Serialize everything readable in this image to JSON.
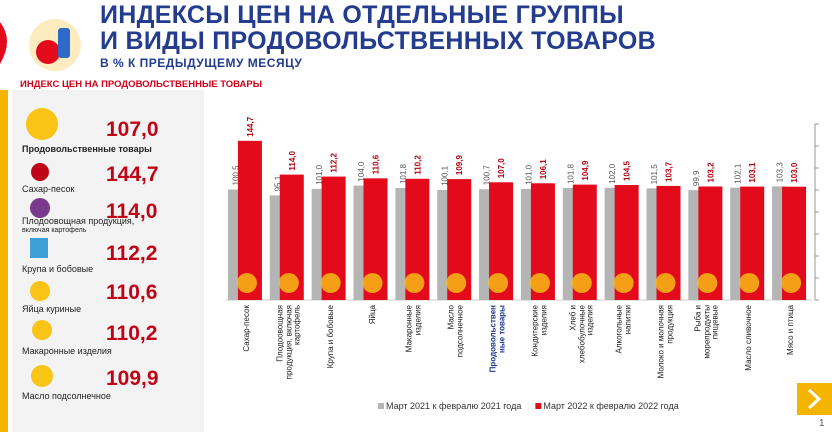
{
  "header": {
    "title_line1": "ИНДЕКСЫ ЦЕН НА ОТДЕЛЬНЫЕ ГРУППЫ",
    "title_line2": "И ВИДЫ ПРОДОВОЛЬСТВЕННЫХ ТОВАРОВ",
    "subtitle": "В % К ПРЕДЫДУЩЕМУ МЕСЯЦУ"
  },
  "left_panel": {
    "title": "ИНДЕКС ЦЕН НА ПРОДОВОЛЬСТВЕННЫЕ ТОВАРЫ",
    "items": [
      {
        "label": "Продовольственные товары",
        "value": "107,0"
      },
      {
        "label": "Сахар-песок",
        "value": "144,7"
      },
      {
        "label": "Плодоовощная продукция,",
        "note": "включая картофель",
        "value": "114,0"
      },
      {
        "label": "Крупа и бобовые",
        "value": "112,2"
      },
      {
        "label": "Яйца куриные",
        "value": "110,6"
      },
      {
        "label": "Макаронные изделия",
        "value": "110,2"
      },
      {
        "label": "Масло подсолнечное",
        "value": "109,9"
      }
    ]
  },
  "chart_data": {
    "type": "bar",
    "categories": [
      "Сахар-песок",
      "Плодоовощная\nпродукция, включая\nкартофель",
      "Крупа и бобовые",
      "Яйца",
      "Макаронные\nизделия",
      "Масло\nподсолнечное",
      "Продовольствен\nные товары",
      "Кондитерские\nизделия",
      "Хлеб и\nхлебобулочные\nизделия",
      "Алкогольные\nнапитки",
      "Молоко и молочная\nпродукция",
      "Рыба и\nморепродукты\nпищевые",
      "Масло сливочное",
      "Мясо и птица"
    ],
    "series": [
      {
        "name": "Март 2021 к февралю 2021 года",
        "color": "#b5b5b5",
        "values": [
          100.5,
          95.1,
          101.0,
          104.0,
          101.8,
          100.1,
          100.7,
          101.0,
          101.8,
          102.0,
          101.5,
          99.9,
          102.1,
          103.3
        ],
        "value_labels": [
          "100,5",
          "95,1",
          "101,0",
          "104,0",
          "101,8",
          "100,1",
          "100,7",
          "101,0",
          "101,8",
          "102,0",
          "101,5",
          "99,9",
          "102,1",
          "103,3"
        ]
      },
      {
        "name": "Март 2022 к февралю 2022 года",
        "color": "#e30a1b",
        "values": [
          144.7,
          114.0,
          112.2,
          110.6,
          110.2,
          109.9,
          107.0,
          106.1,
          104.9,
          104.5,
          103.7,
          103.2,
          103.1,
          103.0
        ],
        "value_labels": [
          "144,7",
          "114,0",
          "112,2",
          "110,6",
          "110,2",
          "109,9",
          "107,0",
          "106,1",
          "104,9",
          "104,5",
          "103,7",
          "103,2",
          "103,1",
          "103,0"
        ]
      }
    ],
    "ylim": [
      0,
      160
    ],
    "yticks": [
      0,
      20,
      40,
      60,
      80,
      100,
      120,
      140,
      160
    ]
  },
  "page_number": "1"
}
